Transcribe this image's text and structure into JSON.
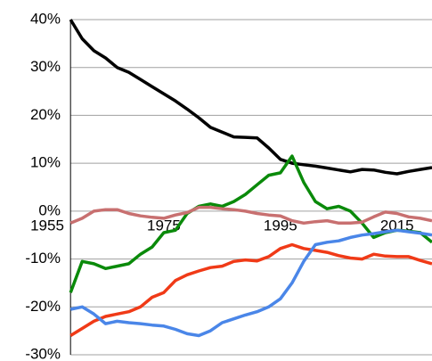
{
  "chart_data": {
    "type": "line",
    "x": [
      1959,
      1961,
      1963,
      1965,
      1967,
      1969,
      1971,
      1973,
      1975,
      1977,
      1979,
      1981,
      1983,
      1985,
      1987,
      1989,
      1991,
      1993,
      1995,
      1997,
      1999,
      2001,
      2003,
      2005,
      2007,
      2009,
      2011,
      2013,
      2015,
      2017,
      2019,
      2021
    ],
    "xlim": [
      1955,
      2021
    ],
    "xticks": [
      1955,
      1975,
      1995,
      2015
    ],
    "ylim": [
      -30,
      40
    ],
    "yticks": [
      {
        "value": 40,
        "label": "40%"
      },
      {
        "value": 30,
        "label": "30%"
      },
      {
        "value": 20,
        "label": "20%"
      },
      {
        "value": 10,
        "label": "10%"
      },
      {
        "value": 0,
        "label": "0%"
      },
      {
        "value": -10,
        "label": "-10%"
      },
      {
        "value": -20,
        "label": "-20%"
      },
      {
        "value": -30,
        "label": "-30%"
      }
    ],
    "grid": true,
    "series": [
      {
        "color": "#000000",
        "values": [
          40,
          36,
          33.5,
          32,
          30,
          29,
          27.5,
          26,
          24.5,
          23,
          21.3,
          19.5,
          17.5,
          16.5,
          15.5,
          15.4,
          15.3,
          13.2,
          10.8,
          10,
          9.7,
          9.4,
          9,
          8.6,
          8.2,
          8.7,
          8.6,
          8.1,
          7.8,
          8.3,
          8.7,
          9.1
        ]
      },
      {
        "color": "#0a8a0a",
        "values": [
          -17,
          -10.5,
          -11,
          -12,
          -11.5,
          -11,
          -9,
          -7.5,
          -4.5,
          -4,
          -0.5,
          1,
          1.5,
          1,
          2,
          3.5,
          5.5,
          7.5,
          8,
          11.5,
          6,
          2,
          0.5,
          1,
          0,
          -2.5,
          -5.5,
          -4.5,
          -4,
          -4.2,
          -4.5,
          -6.5
        ]
      },
      {
        "color": "#f03a17",
        "values": [
          -26,
          -24.5,
          -23,
          -22,
          -21.5,
          -21,
          -20,
          -18,
          -17,
          -14.5,
          -13.3,
          -12.5,
          -11.8,
          -11.5,
          -10.5,
          -10.2,
          -10.4,
          -9.5,
          -7.8,
          -7,
          -7.8,
          -8.2,
          -8.6,
          -9.3,
          -9.8,
          -10,
          -9,
          -9.4,
          -9.5,
          -9.5,
          -10.3,
          -11
        ]
      },
      {
        "color": "#4a86e8",
        "values": [
          -20.5,
          -20,
          -21.5,
          -23.5,
          -23,
          -23.3,
          -23.5,
          -23.8,
          -24,
          -24.7,
          -25.6,
          -26,
          -25,
          -23.3,
          -22.5,
          -21.7,
          -21,
          -20,
          -18.3,
          -15,
          -10.5,
          -7,
          -6.5,
          -6.2,
          -5.5,
          -5,
          -4.7,
          -4.3,
          -4,
          -4.3,
          -4.6,
          -5
        ]
      },
      {
        "color": "#c87070",
        "values": [
          -2.5,
          -1.5,
          0,
          0.3,
          0.3,
          -0.5,
          -1,
          -1.3,
          -1.5,
          -0.8,
          -0.3,
          0.8,
          0.8,
          0.5,
          0.3,
          0,
          -0.5,
          -0.8,
          -1,
          -2,
          -2.5,
          -2.2,
          -2,
          -2.5,
          -2.5,
          -2.3,
          -1.2,
          -0.2,
          -0.5,
          -1.2,
          -1.5,
          -2
        ]
      }
    ]
  }
}
